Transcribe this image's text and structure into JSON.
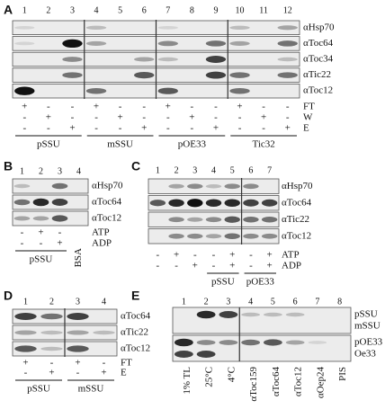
{
  "panels": [
    {
      "letter": "A",
      "lanes": [
        "1",
        "2",
        "3",
        "4",
        "5",
        "6",
        "7",
        "8",
        "9",
        "10",
        "11",
        "12"
      ],
      "rows": [
        "αHsp70",
        "αToc64",
        "αToc34",
        "αTic22",
        "αToc12"
      ],
      "conditions": [
        {
          "label": "FT",
          "signs": [
            "+",
            "-",
            "-",
            "+",
            "-",
            "-",
            "+",
            "-",
            "-",
            "+",
            "-",
            "-"
          ]
        },
        {
          "label": "W",
          "signs": [
            "-",
            "+",
            "-",
            "-",
            "+",
            "-",
            "-",
            "+",
            "-",
            "-",
            "+",
            "-"
          ]
        },
        {
          "label": "E",
          "signs": [
            "-",
            "-",
            "+",
            "-",
            "-",
            "+",
            "-",
            "-",
            "+",
            "-",
            "-",
            "+"
          ]
        }
      ],
      "groups": [
        "pSSU",
        "mSSU",
        "pOE33",
        "Tic32"
      ]
    },
    {
      "letter": "B",
      "lanes": [
        "1",
        "2",
        "3",
        "4"
      ],
      "rows": [
        "αHsp70",
        "αToc64",
        "αToc12"
      ],
      "conditions": [
        {
          "label": "ATP",
          "signs": [
            "-",
            "+",
            "-"
          ]
        },
        {
          "label": "ADP",
          "signs": [
            "-",
            "-",
            "+"
          ]
        }
      ],
      "groups": [
        "pSSU"
      ],
      "extra": "BSA"
    },
    {
      "letter": "C",
      "lanes": [
        "1",
        "2",
        "3",
        "4",
        "5",
        "6",
        "7"
      ],
      "rows": [
        "αHsp70",
        "αToc64",
        "αTic22",
        "αToc12"
      ],
      "conditions": [
        {
          "label": "ATP",
          "signs": [
            "-",
            "+",
            "-",
            "-",
            "+",
            "-",
            "+"
          ]
        },
        {
          "label": "ADP",
          "signs": [
            "-",
            "-",
            "+",
            "-",
            "+",
            "-",
            "+"
          ]
        }
      ],
      "groups": [
        "pSSU",
        "pOE33"
      ]
    },
    {
      "letter": "D",
      "lanes": [
        "1",
        "2",
        "3",
        "4"
      ],
      "rows": [
        "αToc64",
        "αTic22",
        "αToc12"
      ],
      "conditions": [
        {
          "label": "FT",
          "signs": [
            "+",
            "-",
            "+",
            "-"
          ]
        },
        {
          "label": "E",
          "signs": [
            "-",
            "+",
            "-",
            "+"
          ]
        }
      ],
      "groups": [
        "pSSU",
        "mSSU"
      ]
    },
    {
      "letter": "E",
      "lanes": [
        "1",
        "2",
        "3",
        "4",
        "5",
        "6",
        "7",
        "8"
      ],
      "rows": [
        "pSSU",
        "mSSU",
        "pOE33",
        "Oe33"
      ],
      "lane_labels": [
        "1% TL",
        "25°C",
        "4°C",
        "αToc159",
        "αToc64",
        "αToc12",
        "αOep24",
        "PIS"
      ]
    }
  ]
}
